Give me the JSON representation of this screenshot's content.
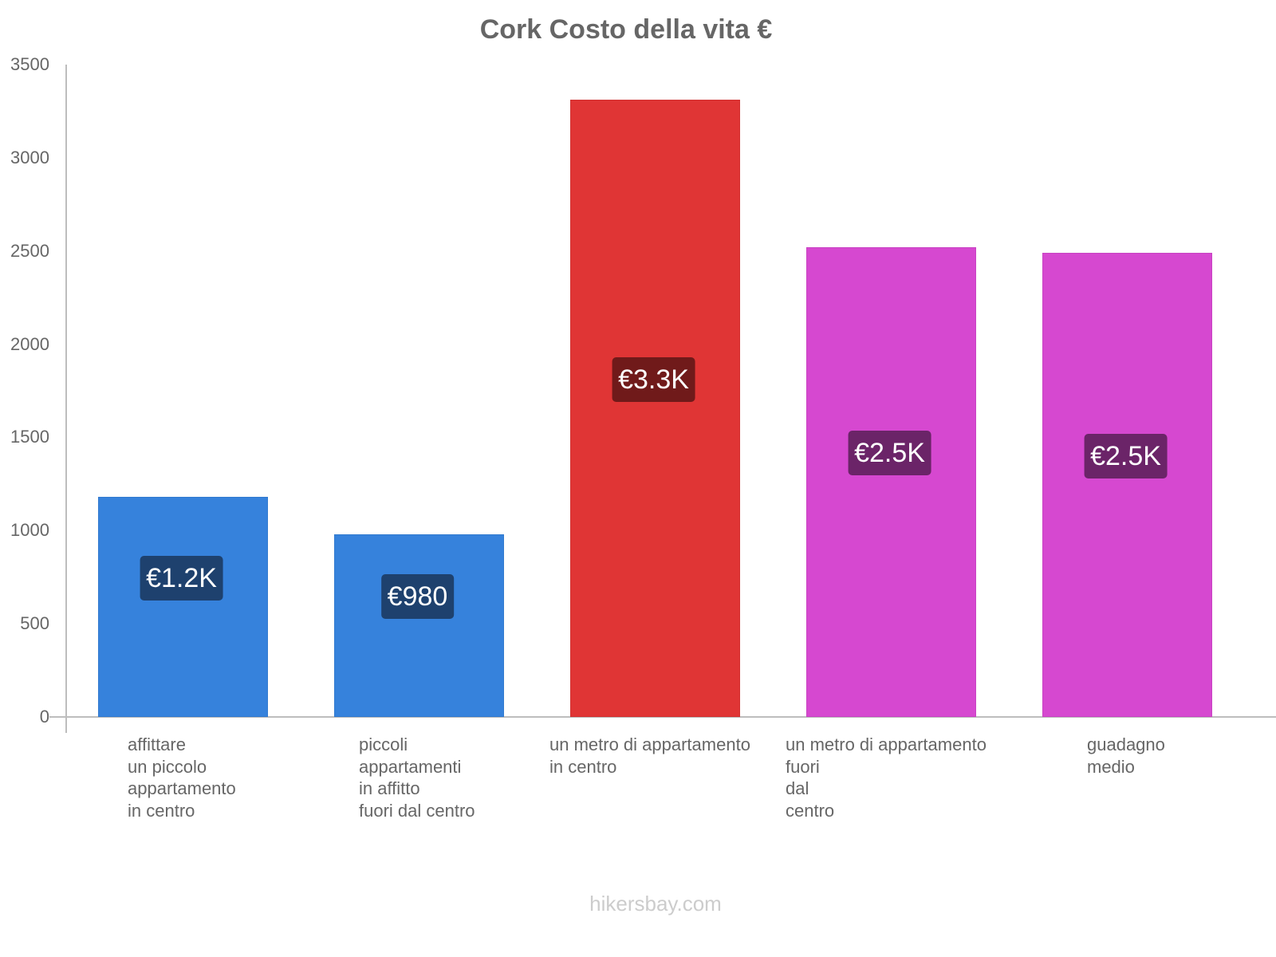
{
  "chart_data": {
    "type": "bar",
    "title": "Cork Costo della vita €",
    "xlabel": "",
    "ylabel": "",
    "ylim": [
      0,
      3500
    ],
    "yticks": [
      0,
      500,
      1000,
      1500,
      2000,
      2500,
      3000,
      3500
    ],
    "grid": false,
    "legend": null,
    "categories": [
      "affittare un piccolo appartamento in centro",
      "piccoli appartamenti in affitto fuori dal centro",
      "un metro di appartamento in centro",
      "un metro di appartamento fuori dal centro",
      "guadagno medio"
    ],
    "values": [
      1180,
      980,
      3310,
      2520,
      2490
    ],
    "data_labels": [
      "€1.2K",
      "€980",
      "€3.3K",
      "€2.5K",
      "€2.5K"
    ],
    "colors": [
      "#3682dc",
      "#3682dc",
      "#e03535",
      "#d648d0",
      "#d648d0"
    ],
    "label_box_colors": [
      "#1e416e",
      "#1e416e",
      "#701a1a",
      "#6b2468",
      "#6b2468"
    ]
  },
  "header": {
    "title": "Cork Costo della vita €"
  },
  "axis": {
    "y_ticks": [
      "0",
      "500",
      "1000",
      "1500",
      "2000",
      "2500",
      "3000",
      "3500"
    ]
  },
  "bars": [
    {
      "label_lines": "affittare\nun piccolo\nappartamento\nin centro",
      "value_label": "€1.2K"
    },
    {
      "label_lines": "piccoli\nappartamenti\nin affitto\nfuori dal centro",
      "value_label": "€980"
    },
    {
      "label_lines": "un metro di appartamento\nin centro",
      "value_label": "€3.3K"
    },
    {
      "label_lines": "un metro di appartamento\nfuori\ndal\ncentro",
      "value_label": "€2.5K"
    },
    {
      "label_lines": "guadagno\nmedio",
      "value_label": "€2.5K"
    }
  ],
  "footer": {
    "watermark": "hikersbay.com"
  }
}
